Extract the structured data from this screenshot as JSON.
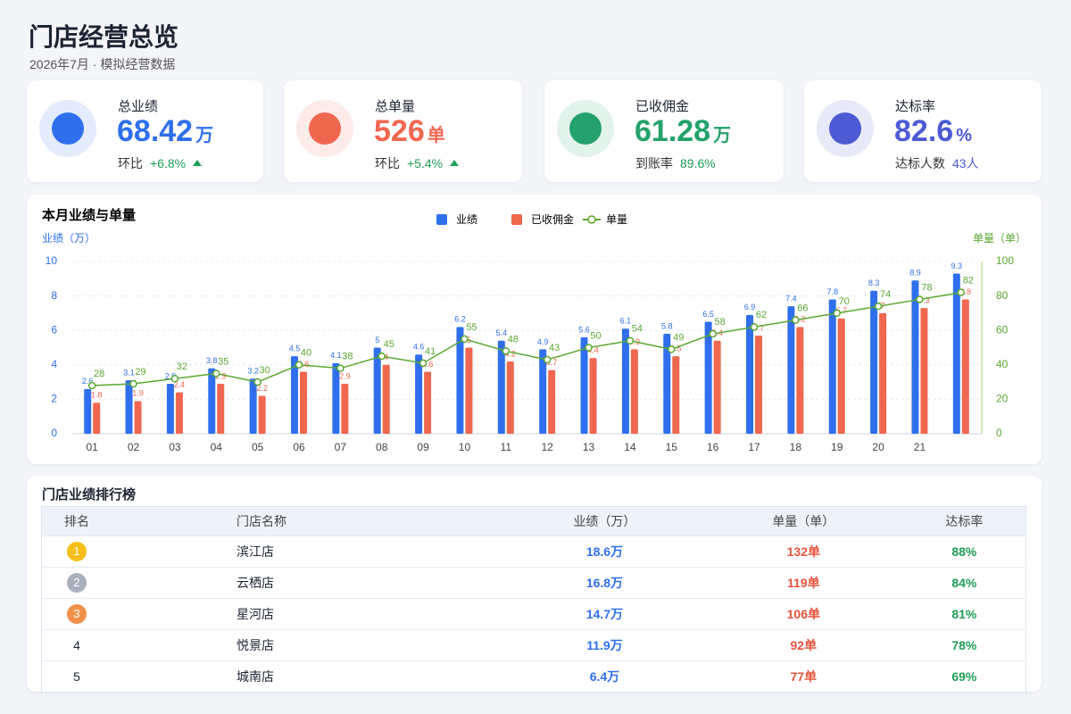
{
  "header": {
    "title": "门店经营总览",
    "subtitle": "2026年7月 · 模拟经营数据"
  },
  "kpis": [
    {
      "label": "总业绩",
      "value": "68.42",
      "unit": "万",
      "note_label": "环比",
      "note_value": "+6.8%",
      "trend": "up",
      "color": "#2f6fed"
    },
    {
      "label": "总单量",
      "value": "526",
      "unit": "单",
      "note_label": "环比",
      "note_value": "+5.4%",
      "trend": "up",
      "color": "#f0674f"
    },
    {
      "label": "已收佣金",
      "value": "61.28",
      "unit": "万",
      "note_label": "到账率",
      "note_value": "89.6%",
      "color": "#23a26b"
    },
    {
      "label": "达标率",
      "value": "82.6",
      "unit": "%",
      "note_label": "达标人数",
      "note_value": "43人",
      "color": "#4c5bd4"
    }
  ],
  "chart_data": {
    "type": "bar",
    "title": "本月业绩与单量",
    "y_label": "业绩（万）",
    "y2_label": "单量（单）",
    "categories": [
      "01",
      "02",
      "03",
      "04",
      "05",
      "06",
      "07",
      "08",
      "09",
      "10",
      "11",
      "12",
      "13",
      "14",
      "15",
      "16",
      "17",
      "18",
      "19",
      "20",
      "21",
      null
    ],
    "series": [
      {
        "name": "业绩",
        "type": "bar",
        "color": "#2f6fed",
        "values": [
          2.6,
          3.1,
          2.9,
          3.8,
          3.2,
          4.5,
          4.1,
          5.0,
          4.6,
          6.2,
          5.4,
          4.9,
          5.6,
          6.1,
          5.8,
          6.5,
          6.9,
          7.4,
          7.8,
          8.3,
          8.9,
          9.3
        ]
      },
      {
        "name": "已收佣金",
        "type": "bar",
        "color": "#f0674f",
        "values": [
          1.8,
          1.9,
          2.4,
          2.9,
          2.2,
          3.6,
          2.9,
          4.0,
          3.6,
          5.0,
          4.2,
          3.7,
          4.4,
          4.9,
          4.5,
          5.4,
          5.7,
          6.2,
          6.7,
          7.0,
          7.3,
          7.8
        ]
      },
      {
        "name": "单量",
        "type": "line",
        "axis": "y2",
        "color": "#5aa832",
        "values": [
          28,
          29,
          32,
          35,
          30,
          40,
          38,
          45,
          41,
          55,
          48,
          43,
          50,
          54,
          49,
          58,
          62,
          66,
          70,
          74,
          78,
          82
        ]
      }
    ],
    "ylim": [
      0,
      10
    ],
    "yticks": [
      0,
      2,
      4,
      6,
      8,
      10
    ],
    "y2lim": [
      0,
      100
    ],
    "y2ticks": [
      0,
      20,
      40,
      60,
      80,
      100
    ],
    "grid": true
  },
  "table": {
    "title": "门店业绩排行榜",
    "columns": [
      "排名",
      "门店名称",
      "业绩（万）",
      "单量（单）",
      "达标率"
    ],
    "rows": [
      [
        "1",
        "滨江店",
        "18.6万",
        "132单",
        "88%"
      ],
      [
        "2",
        "云栖店",
        "16.8万",
        "119单",
        "84%"
      ],
      [
        "3",
        "星河店",
        "14.7万",
        "106单",
        "81%"
      ],
      [
        "4",
        "悦景店",
        "11.9万",
        "92单",
        "78%"
      ],
      [
        "5",
        "城南店",
        "6.4万",
        "77单",
        "69%"
      ]
    ]
  }
}
